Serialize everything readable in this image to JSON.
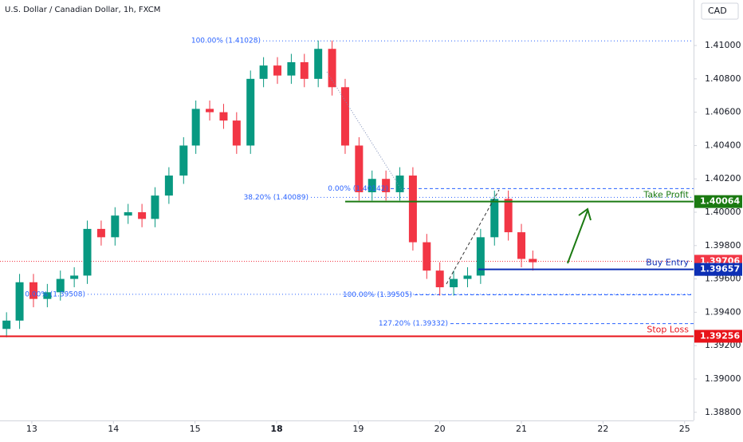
{
  "chart_data": {
    "type": "candlestick",
    "title": "U.S. Dollar / Canadian Dollar, 1h, FXCM",
    "currency": "CAD",
    "x": [
      -0.31,
      -0.15,
      0.02,
      0.19,
      0.35,
      0.52,
      0.68,
      0.85,
      1.02,
      1.18,
      1.35,
      1.51,
      1.68,
      1.86,
      2.01,
      2.18,
      2.35,
      2.51,
      2.68,
      2.84,
      3.01,
      3.18,
      3.34,
      3.51,
      3.68,
      3.84,
      4.01,
      4.17,
      4.34,
      4.51,
      4.67,
      4.84,
      5.0,
      5.17,
      5.34,
      5.5,
      5.67,
      5.84,
      6.0,
      6.14
    ],
    "open": [
      1.393,
      1.3935,
      1.3958,
      1.3948,
      1.3952,
      1.396,
      1.3962,
      1.399,
      1.3985,
      1.3998,
      1.4,
      1.3996,
      1.401,
      1.4022,
      1.404,
      1.4062,
      1.406,
      1.4055,
      1.404,
      1.408,
      1.4088,
      1.4082,
      1.409,
      1.408,
      1.4098,
      1.4075,
      1.404,
      1.4012,
      1.402,
      1.4012,
      1.4022,
      1.3982,
      1.3965,
      1.3955,
      1.396,
      1.3962,
      1.3985,
      1.4008,
      1.3988,
      1.3972
    ],
    "high": [
      1.394,
      1.3963,
      1.3963,
      1.3957,
      1.3965,
      1.3967,
      1.3995,
      1.3995,
      1.4003,
      1.4005,
      1.4005,
      1.4015,
      1.4027,
      1.4045,
      1.4067,
      1.4067,
      1.4065,
      1.406,
      1.4085,
      1.4093,
      1.4093,
      1.4095,
      1.4095,
      1.4103,
      1.4103,
      1.408,
      1.4045,
      1.4025,
      1.4025,
      1.4027,
      1.4027,
      1.3987,
      1.397,
      1.3965,
      1.3967,
      1.399,
      1.4013,
      1.4013,
      1.3993,
      1.3977
    ],
    "low": [
      1.3925,
      1.393,
      1.3943,
      1.3943,
      1.3947,
      1.3955,
      1.3957,
      1.398,
      1.398,
      1.3993,
      1.3991,
      1.3991,
      1.4005,
      1.4017,
      1.4035,
      1.4055,
      1.405,
      1.4035,
      1.4035,
      1.4075,
      1.4077,
      1.4077,
      1.4075,
      1.4075,
      1.407,
      1.4035,
      1.4007,
      1.4007,
      1.4007,
      1.4007,
      1.3977,
      1.396,
      1.395,
      1.395,
      1.3955,
      1.3957,
      1.398,
      1.3983,
      1.3967,
      1.3965
    ],
    "close": [
      1.3935,
      1.3958,
      1.3948,
      1.3952,
      1.396,
      1.3962,
      1.399,
      1.3985,
      1.3998,
      1.4,
      1.3996,
      1.401,
      1.4022,
      1.404,
      1.4062,
      1.406,
      1.4055,
      1.404,
      1.408,
      1.4088,
      1.4082,
      1.409,
      1.408,
      1.4098,
      1.4075,
      1.404,
      1.4012,
      1.402,
      1.4012,
      1.4022,
      1.3982,
      1.3965,
      1.3955,
      1.396,
      1.3962,
      1.3985,
      1.4008,
      1.3988,
      1.3972,
      1.397
    ],
    "up_color": "#089981",
    "down_color": "#f23645",
    "xlim": [
      -0.39,
      8.11
    ],
    "xticks": [
      {
        "value": 0,
        "label": "13"
      },
      {
        "value": 1,
        "label": "14"
      },
      {
        "value": 2,
        "label": "15"
      },
      {
        "value": 3,
        "label": "18"
      },
      {
        "value": 4,
        "label": "19"
      },
      {
        "value": 5,
        "label": "20"
      },
      {
        "value": 6,
        "label": "21"
      },
      {
        "value": 7,
        "label": "22"
      },
      {
        "value": 8,
        "label": "25"
      }
    ],
    "ylim": [
      1.38751,
      1.41273
    ],
    "yticks": [
      {
        "value": 1.388,
        "label": "1.38800"
      },
      {
        "value": 1.39,
        "label": "1.39000"
      },
      {
        "value": 1.392,
        "label": "1.39200"
      },
      {
        "value": 1.394,
        "label": "1.39400"
      },
      {
        "value": 1.396,
        "label": "1.39600"
      },
      {
        "value": 1.398,
        "label": "1.39800"
      },
      {
        "value": 1.4,
        "label": "1.40000"
      },
      {
        "value": 1.402,
        "label": "1.40200"
      },
      {
        "value": 1.404,
        "label": "1.40400"
      },
      {
        "value": 1.406,
        "label": "1.40600"
      },
      {
        "value": 1.408,
        "label": "1.40800"
      },
      {
        "value": 1.41,
        "label": "1.41000"
      }
    ],
    "levels": [
      {
        "name": "Take Profit",
        "value": 1.40064,
        "color": "#1b7a12"
      },
      {
        "name": "Buy Entry",
        "value": 1.39657,
        "color": "#0d2fb5"
      },
      {
        "name": "Stop Loss",
        "value": 1.39256,
        "color": "#e8141b"
      }
    ],
    "last_price": {
      "value": 1.39706,
      "color": "#f23645"
    },
    "fib": [
      {
        "label": "100.00% (1.41028)",
        "value": 1.41028
      },
      {
        "label": "38.20% (1.40089)",
        "value": 1.40089
      },
      {
        "label": "0.00% (1.39508)",
        "value": 1.39508
      },
      {
        "label": "0.00% (1.40142)",
        "value": 1.40142
      },
      {
        "label": "100.00% (1.39505)",
        "value": 1.39505
      },
      {
        "label": "127.20% (1.39332)",
        "value": 1.39332
      }
    ]
  }
}
